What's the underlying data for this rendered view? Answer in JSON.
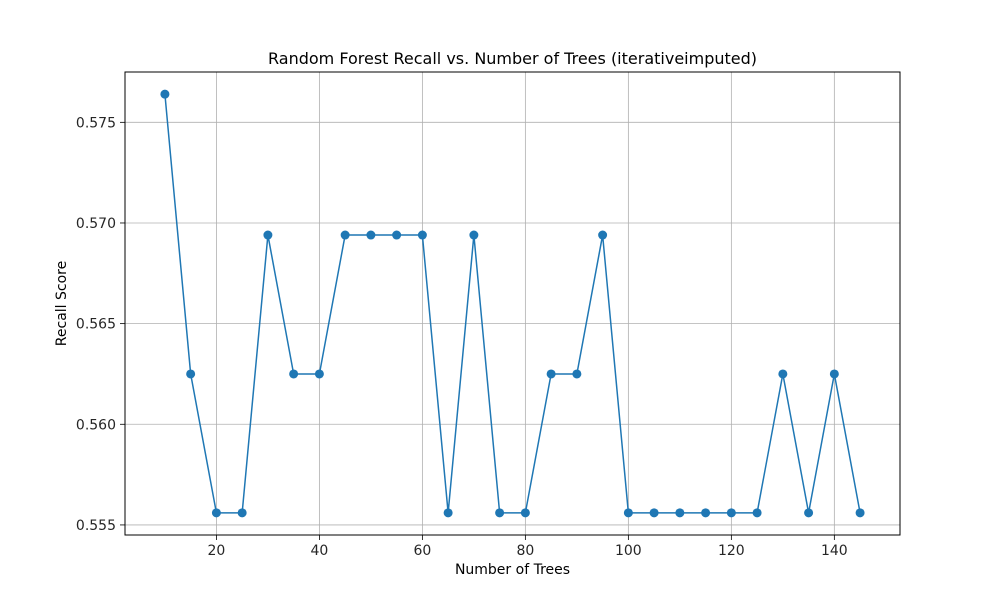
{
  "chart_data": {
    "type": "line",
    "title": "Random Forest Recall vs. Number of Trees (iterativeimputed)",
    "xlabel": "Number of Trees",
    "ylabel": "Recall Score",
    "xlim": [
      2.25,
      152.75
    ],
    "ylim": [
      0.5545,
      0.5775
    ],
    "xticks": [
      20,
      40,
      60,
      80,
      100,
      120,
      140
    ],
    "yticks": [
      0.555,
      0.56,
      0.565,
      0.57,
      0.575
    ],
    "ytick_labels": [
      "0.555",
      "0.560",
      "0.565",
      "0.570",
      "0.575"
    ],
    "grid": true,
    "line_color": "#1f77b4",
    "series": [
      {
        "x": [
          10,
          15,
          20,
          25,
          30,
          35,
          40,
          45,
          50,
          55,
          60,
          65,
          70,
          75,
          80,
          85,
          90,
          95,
          100,
          105,
          110,
          115,
          120,
          125,
          130,
          135,
          140,
          145
        ],
        "values": [
          0.5764,
          0.5625,
          0.5556,
          0.5556,
          0.5694,
          0.5625,
          0.5625,
          0.5694,
          0.5694,
          0.5694,
          0.5694,
          0.5556,
          0.5694,
          0.5556,
          0.5556,
          0.5625,
          0.5625,
          0.5694,
          0.5556,
          0.5556,
          0.5556,
          0.5556,
          0.5556,
          0.5556,
          0.5625,
          0.5556,
          0.5625,
          0.5556
        ]
      }
    ]
  }
}
